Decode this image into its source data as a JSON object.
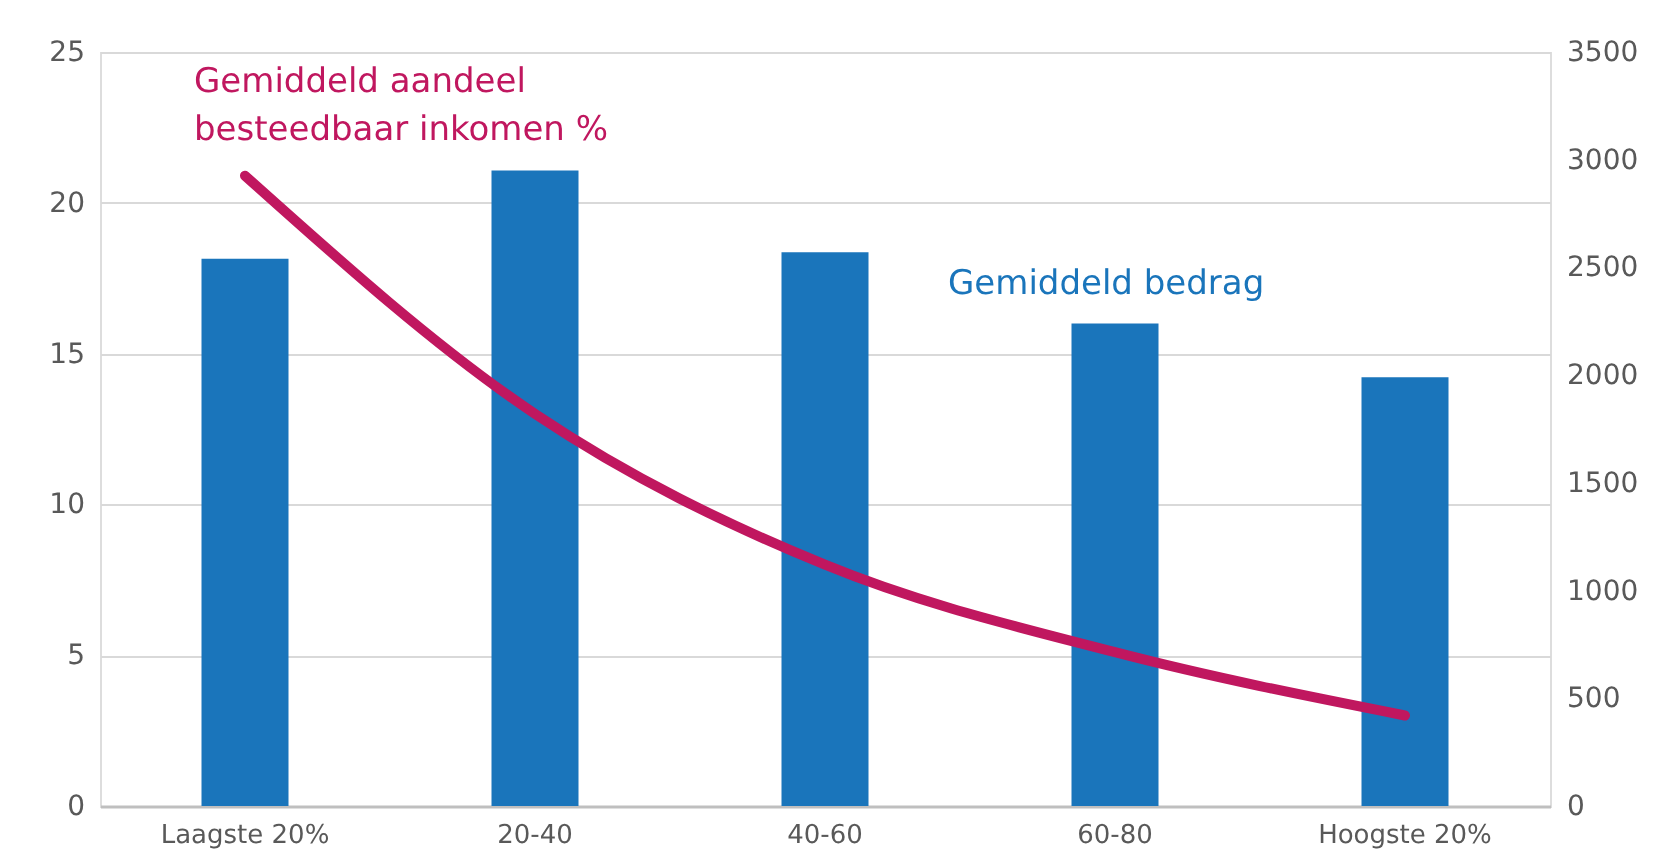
{
  "chart_data": {
    "type": "bar",
    "categories": [
      "Laagste 20%",
      "20-40",
      "40-60",
      "60-80",
      "Hoogste 20%"
    ],
    "series": [
      {
        "name": "Gemiddeld bedrag",
        "axis": "y2",
        "color": "#1a75bb",
        "values": [
          2540,
          2950,
          2570,
          2240,
          1990
        ]
      },
      {
        "name": "Gemiddeld aandeel besteedbaar inkomen %",
        "type": "line",
        "color": "#c0175f",
        "values": [
          20.9,
          13.0,
          8.0,
          5.1,
          3.0
        ]
      }
    ],
    "ylim": [
      0,
      25
    ],
    "yticks": [
      0,
      5,
      10,
      15,
      20,
      25
    ],
    "y2lim": [
      0,
      3500
    ],
    "y2ticks": [
      0,
      500,
      1000,
      1500,
      2000,
      2500,
      3000,
      3500
    ],
    "grid": "y",
    "legend": false
  }
}
